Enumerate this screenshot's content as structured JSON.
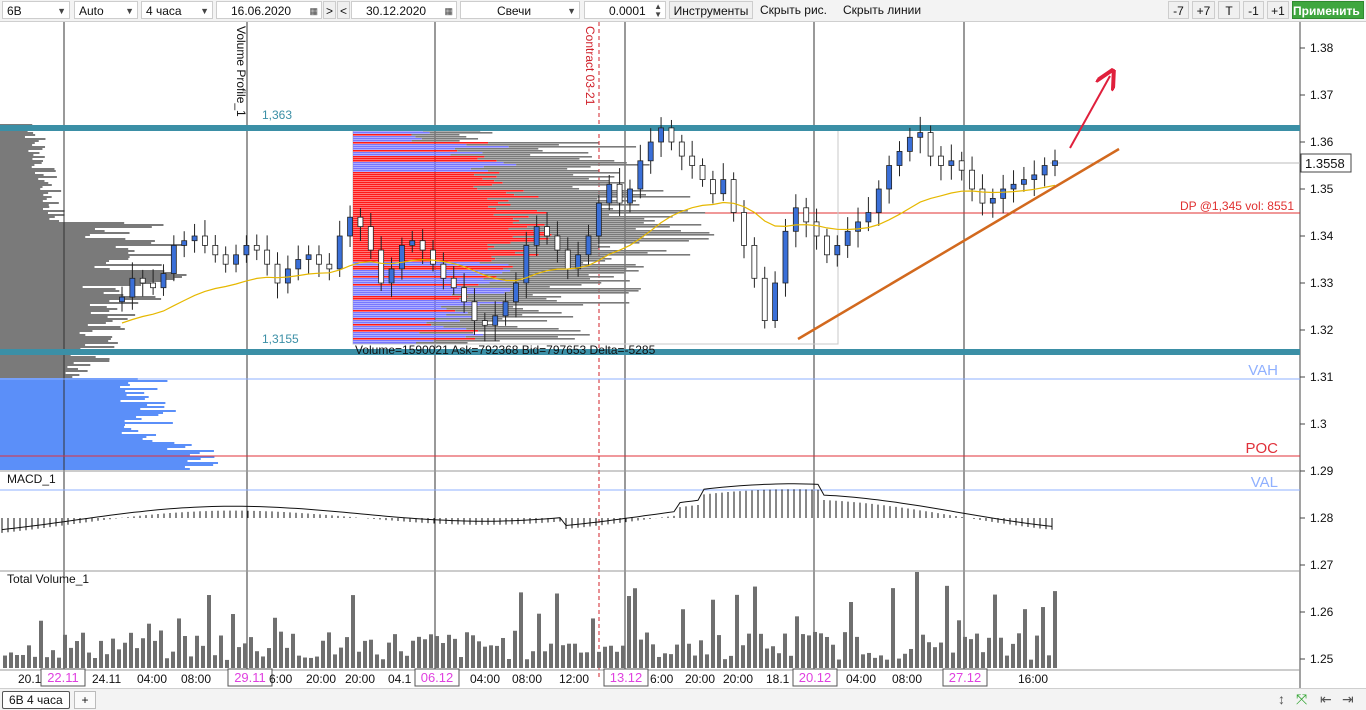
{
  "toolbar": {
    "symbol": "6B",
    "scale": "Auto",
    "timeframe": "4 часа",
    "date_from": "16.06.2020",
    "nav_next": ">",
    "nav_prev": "<",
    "date_to": "30.12.2020",
    "chart_type": "Свечи",
    "step": "0.0001",
    "instruments": "Инструменты",
    "hide_drawings": "Скрыть рис.",
    "hide_lines": "Скрыть линии",
    "minus7": "-7",
    "plus7": "+7",
    "t": "T",
    "minus1": "-1",
    "plus1": "+1",
    "apply": "Применить"
  },
  "price_axis": {
    "labels": [
      "1.38",
      "1.37",
      "1.36",
      "1.35",
      "1.34",
      "1.33",
      "1.32",
      "1.31",
      "1.3",
      "1.29",
      "1.28",
      "1.27",
      "1.26",
      "1.25"
    ],
    "current_price": "1.3558"
  },
  "annotations": {
    "volume_profile": "Volume Profile_1",
    "contract": "Contract 03-21",
    "level_high": "1,363",
    "level_low": "1,3155",
    "profile_stats": "Volume=1590021  Ask=792368  Bid=797653  Delta=-5285",
    "dp": "DP @1,345 vol: 8551",
    "vah": "VAH",
    "poc": "POC",
    "val": "VAL"
  },
  "panels": {
    "macd": "MACD_1",
    "volume": "Total Volume_1"
  },
  "time_axis": [
    {
      "label": "20.1",
      "boxed": false
    },
    {
      "label": "22.11",
      "boxed": true
    },
    {
      "label": "24.11",
      "boxed": false
    },
    {
      "label": "04:00",
      "boxed": false
    },
    {
      "label": "08:00",
      "boxed": false
    },
    {
      "label": "29.11",
      "boxed": true
    },
    {
      "label": "6:00",
      "boxed": false
    },
    {
      "label": "20:00",
      "boxed": false
    },
    {
      "label": "20:00",
      "boxed": false
    },
    {
      "label": "04.1",
      "boxed": false
    },
    {
      "label": "06.12",
      "boxed": true
    },
    {
      "label": "04:00",
      "boxed": false
    },
    {
      "label": "08:00",
      "boxed": false
    },
    {
      "label": "12:00",
      "boxed": false
    },
    {
      "label": "13.12",
      "boxed": true
    },
    {
      "label": "6:00",
      "boxed": false
    },
    {
      "label": "20:00",
      "boxed": false
    },
    {
      "label": "20:00",
      "boxed": false
    },
    {
      "label": "18.1",
      "boxed": false
    },
    {
      "label": "20.12",
      "boxed": true
    },
    {
      "label": "04:00",
      "boxed": false
    },
    {
      "label": "08:00",
      "boxed": false
    },
    {
      "label": "27.12",
      "boxed": true
    },
    {
      "label": "16:00",
      "boxed": false
    }
  ],
  "bottom": {
    "tab": "6B 4 часа",
    "add": "+"
  },
  "colors": {
    "level_band": "#3b8fa6",
    "bull_candle": "#3a6fd8",
    "bear_candle": "#ffffff",
    "profile_bid": "#ff1a1a",
    "profile_ask": "#7777ff",
    "profile_gray": "#7a7a7a",
    "value_area": "#5b8ff9",
    "ma_line": "#e6b800",
    "trendline": "#d2691e",
    "arrow": "#e0203c",
    "date_box": "#e040e0",
    "apply_button": "#3fa63f"
  },
  "chart_data": {
    "type": "candlestick",
    "symbol": "6B",
    "timeframe": "4 часа",
    "candles_close_approx": [
      1.327,
      1.331,
      1.33,
      1.329,
      1.332,
      1.338,
      1.339,
      1.34,
      1.338,
      1.336,
      1.334,
      1.336,
      1.338,
      1.337,
      1.334,
      1.33,
      1.333,
      1.335,
      1.336,
      1.334,
      1.333,
      1.34,
      1.344,
      1.342,
      1.337,
      1.33,
      1.333,
      1.338,
      1.339,
      1.337,
      1.334,
      1.331,
      1.329,
      1.326,
      1.322,
      1.321,
      1.323,
      1.326,
      1.33,
      1.338,
      1.342,
      1.34,
      1.337,
      1.333,
      1.336,
      1.34,
      1.347,
      1.351,
      1.347,
      1.35,
      1.356,
      1.36,
      1.363,
      1.36,
      1.357,
      1.355,
      1.352,
      1.349,
      1.352,
      1.345,
      1.338,
      1.331,
      1.322,
      1.33,
      1.341,
      1.346,
      1.343,
      1.34,
      1.336,
      1.338,
      1.341,
      1.343,
      1.345,
      1.35,
      1.355,
      1.358,
      1.361,
      1.362,
      1.357,
      1.355,
      1.356,
      1.354,
      1.35,
      1.347,
      1.348,
      1.35,
      1.351,
      1.352,
      1.353,
      1.355,
      1.356
    ],
    "levels": {
      "resistance": 1.363,
      "support": 1.3155,
      "dp": 1.345
    },
    "volume_profile_stats": {
      "volume": 1590021,
      "ask": 792368,
      "bid": 797653,
      "delta": -5285
    },
    "last_price": 1.3558
  }
}
